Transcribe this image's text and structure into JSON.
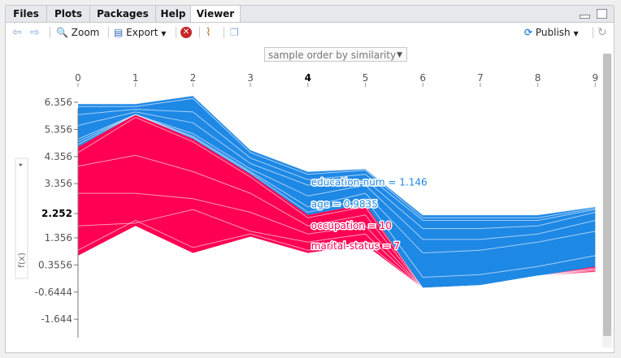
{
  "tabs": [
    "Files",
    "Plots",
    "Packages",
    "Help",
    "Viewer"
  ],
  "toolbar": {
    "zoom_label": "Zoom",
    "export_label": "Export",
    "publish_label": "Publish"
  },
  "colors": {
    "positive": "#ff0052",
    "negative": "#1e88e5",
    "axis": "#555555"
  },
  "select": {
    "value": "sample order by similarity"
  },
  "chart_data": {
    "type": "area",
    "x_ticks": [
      "0",
      "1",
      "2",
      "3",
      "4",
      "5",
      "6",
      "7",
      "8",
      "9"
    ],
    "highlight_x": "4",
    "y_ticks": [
      "6.356",
      "5.356",
      "4.356",
      "3.356",
      "2.252",
      "1.356",
      "0.3556",
      "-0.6444",
      "-1.644"
    ],
    "base_value_label": "2.252",
    "ylabel": "f(x)",
    "ylim": [
      -2.2,
      7.0
    ],
    "x": [
      0,
      1,
      2,
      3,
      4,
      5,
      6,
      7,
      8,
      9
    ],
    "top": [
      6.3,
      6.3,
      6.6,
      4.6,
      3.8,
      3.9,
      2.2,
      2.2,
      2.2,
      2.5
    ],
    "boundary": [
      4.7,
      5.9,
      5.0,
      3.7,
      2.2,
      2.6,
      -0.5,
      -0.4,
      -0.05,
      0.1
    ],
    "bottom": [
      0.7,
      1.8,
      0.8,
      1.4,
      0.8,
      1.1,
      -0.5,
      -0.4,
      -0.05,
      0.3
    ],
    "blue_lines": [
      [
        6.2,
        6.2,
        6.5,
        4.5,
        3.7,
        3.85,
        2.1,
        2.1,
        2.1,
        2.45
      ],
      [
        5.9,
        6.1,
        6.0,
        4.3,
        3.5,
        3.7,
        2.0,
        2.0,
        2.0,
        2.4
      ],
      [
        5.5,
        6.0,
        5.6,
        4.1,
        3.3,
        3.5,
        1.7,
        1.7,
        1.8,
        2.3
      ],
      [
        5.0,
        5.9,
        5.2,
        3.9,
        2.9,
        3.3,
        1.3,
        1.3,
        1.5,
        2.0
      ],
      [
        4.9,
        5.9,
        5.1,
        3.8,
        2.5,
        3.0,
        0.8,
        0.9,
        1.2,
        1.6
      ],
      [
        4.8,
        5.9,
        5.05,
        3.75,
        2.3,
        2.8,
        -0.1,
        0.0,
        0.3,
        0.7
      ]
    ],
    "red_lines": [
      [
        4.5,
        5.8,
        4.9,
        3.6,
        2.1,
        2.5,
        -0.5,
        -0.4,
        -0.05,
        0.1
      ],
      [
        4.0,
        4.4,
        3.8,
        3.0,
        1.8,
        2.2,
        -0.5,
        -0.4,
        -0.05,
        0.15
      ],
      [
        3.0,
        3.0,
        2.8,
        2.3,
        1.5,
        1.8,
        -0.5,
        -0.4,
        -0.05,
        0.2
      ],
      [
        1.8,
        1.9,
        2.4,
        1.6,
        1.2,
        1.5,
        -0.5,
        -0.4,
        -0.05,
        0.2
      ],
      [
        0.9,
        2.0,
        1.0,
        1.5,
        0.9,
        1.2,
        -0.5,
        -0.4,
        -0.05,
        0.25
      ]
    ],
    "annotations": [
      {
        "text": "education-num = 1.146",
        "y": 3.4,
        "color": "#1e88e5"
      },
      {
        "text": "age = 0.9835",
        "y": 2.6,
        "color": "#1e88e5"
      },
      {
        "text": "occupation = 10",
        "y": 1.8,
        "color": "#ff0052"
      },
      {
        "text": "marital-status = 7",
        "y": 1.05,
        "color": "#ff0052"
      }
    ]
  }
}
